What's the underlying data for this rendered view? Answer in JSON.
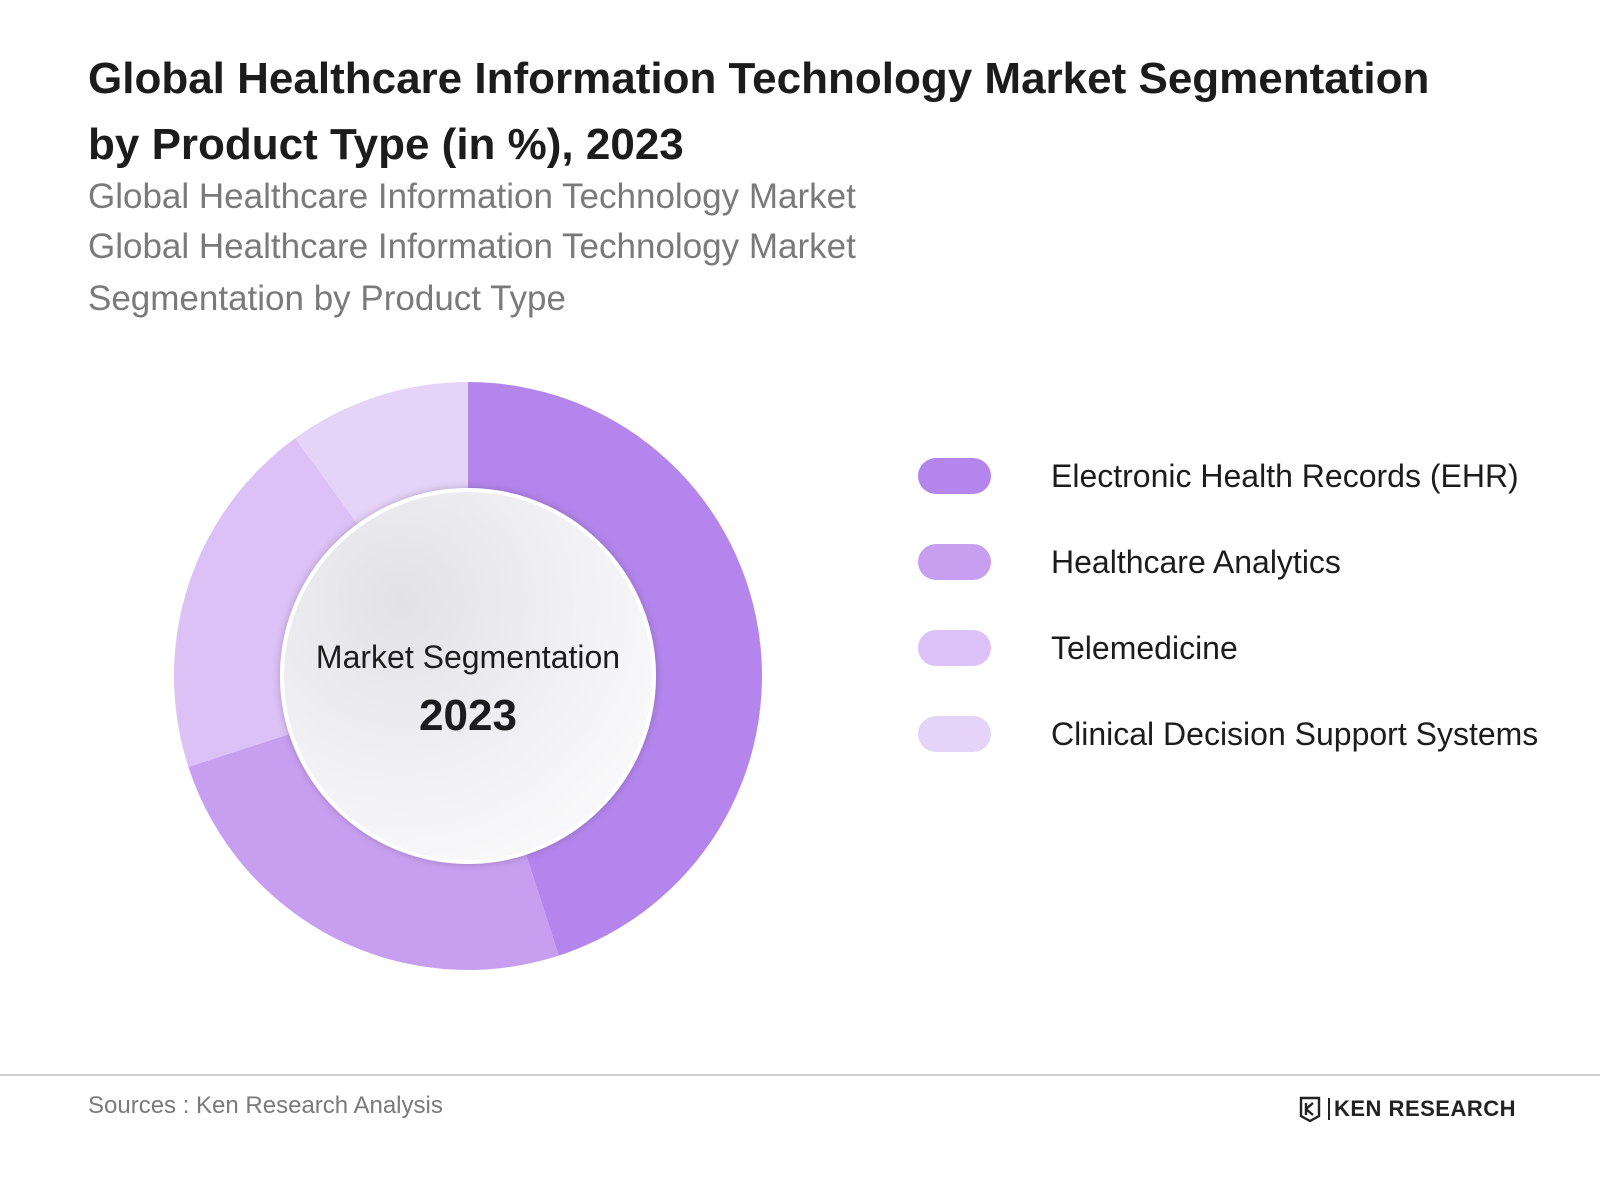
{
  "title_line1": "Global Healthcare Information Technology Market Segmentation",
  "title_line2": "by Product Type  (in %), 2023",
  "subtitle_lines": [
    "Global Healthcare Information Technology Market",
    "Global Healthcare Information Technology Market",
    "Segmentation by Product Type"
  ],
  "chart_data": {
    "type": "pie",
    "style": "donut",
    "center_label": "Market Segmentation",
    "center_value": "2023",
    "categories": [
      "Electronic Health Records (EHR)",
      "Healthcare Analytics",
      "Telemedicine",
      "Clinical Decision Support Systems"
    ],
    "values": [
      45,
      25,
      20,
      10
    ],
    "colors": [
      "#b485ec",
      "#c89ff0",
      "#dbc1f6",
      "#e6d3f8"
    ],
    "legend_position": "right"
  },
  "footer": {
    "source": "Sources : Ken Research Analysis",
    "brand": "KEN RESEARCH"
  }
}
